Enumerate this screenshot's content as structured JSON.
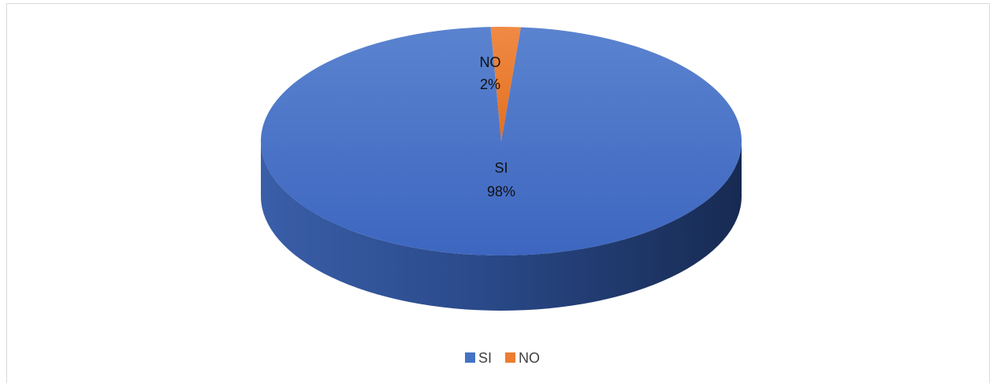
{
  "chart_data": {
    "type": "pie",
    "style": "3d",
    "categories": [
      "SI",
      "NO"
    ],
    "values": [
      98,
      2
    ],
    "data_labels": [
      {
        "category": "SI",
        "percent": "98%"
      },
      {
        "category": "NO",
        "percent": "2%"
      }
    ],
    "colors": {
      "SI": "#4472C4",
      "NO": "#ED7D31"
    },
    "legend": {
      "position": "bottom",
      "items": [
        "SI",
        "NO"
      ]
    }
  }
}
